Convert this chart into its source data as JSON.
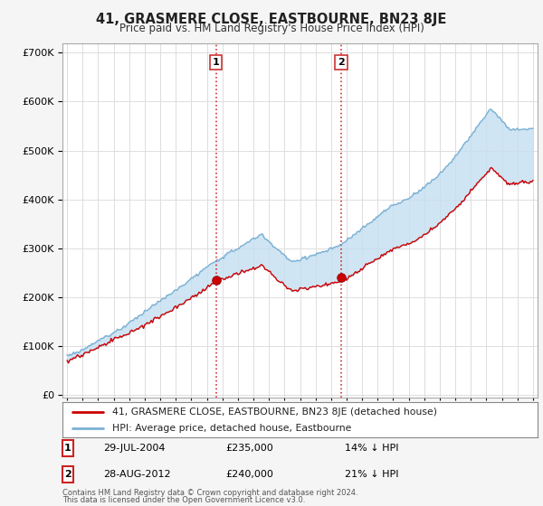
{
  "title": "41, GRASMERE CLOSE, EASTBOURNE, BN23 8JE",
  "subtitle": "Price paid vs. HM Land Registry's House Price Index (HPI)",
  "footer1": "Contains HM Land Registry data © Crown copyright and database right 2024.",
  "footer2": "This data is licensed under the Open Government Licence v3.0.",
  "legend_line1": "41, GRASMERE CLOSE, EASTBOURNE, BN23 8JE (detached house)",
  "legend_line2": "HPI: Average price, detached house, Eastbourne",
  "transaction1_date": "29-JUL-2004",
  "transaction1_price": "£235,000",
  "transaction1_hpi": "14% ↓ HPI",
  "transaction2_date": "28-AUG-2012",
  "transaction2_price": "£240,000",
  "transaction2_hpi": "21% ↓ HPI",
  "hpi_color": "#7ab0d4",
  "price_color": "#cc0000",
  "fill_color": "#c5dff0",
  "background_color": "#f5f5f5",
  "plot_bg_color": "#ffffff",
  "marker1_year": 2004.58,
  "marker1_price": 235000,
  "marker2_year": 2012.66,
  "marker2_price": 240000,
  "ylim_max": 700000,
  "xlim_min": 1994.7,
  "xlim_max": 2025.3
}
